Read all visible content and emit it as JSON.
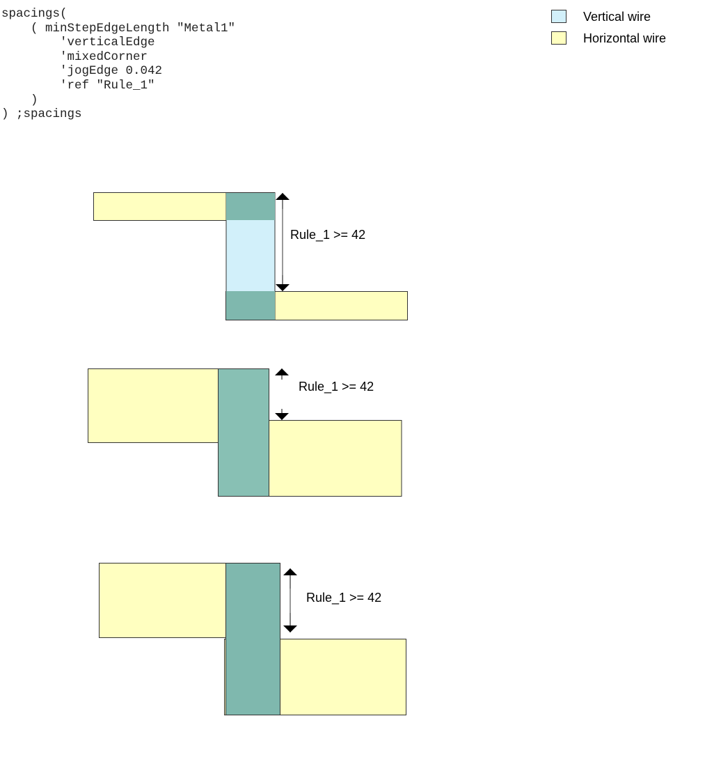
{
  "code": {
    "lines": [
      "spacings(",
      "    ( minStepEdgeLength \"Metal1\"",
      "        'verticalEdge",
      "        'mixedCorner",
      "        'jogEdge 0.042",
      "        'ref \"Rule_1\"",
      "    )",
      ") ;spacings"
    ]
  },
  "legend": [
    {
      "label": "Vertical wire",
      "color": "#d2f0fa"
    },
    {
      "label": "Horizontal wire",
      "color": "#ffffc0"
    }
  ],
  "colors": {
    "overlap": "#7fb8ae",
    "horizontal": "#ffffc0",
    "vertical": "#d2f0fa"
  },
  "diagrams": [
    {
      "label": "Rule_1 >= 42"
    },
    {
      "label": "Rule_1 >= 42"
    },
    {
      "label": "Rule_1 >= 42"
    }
  ]
}
